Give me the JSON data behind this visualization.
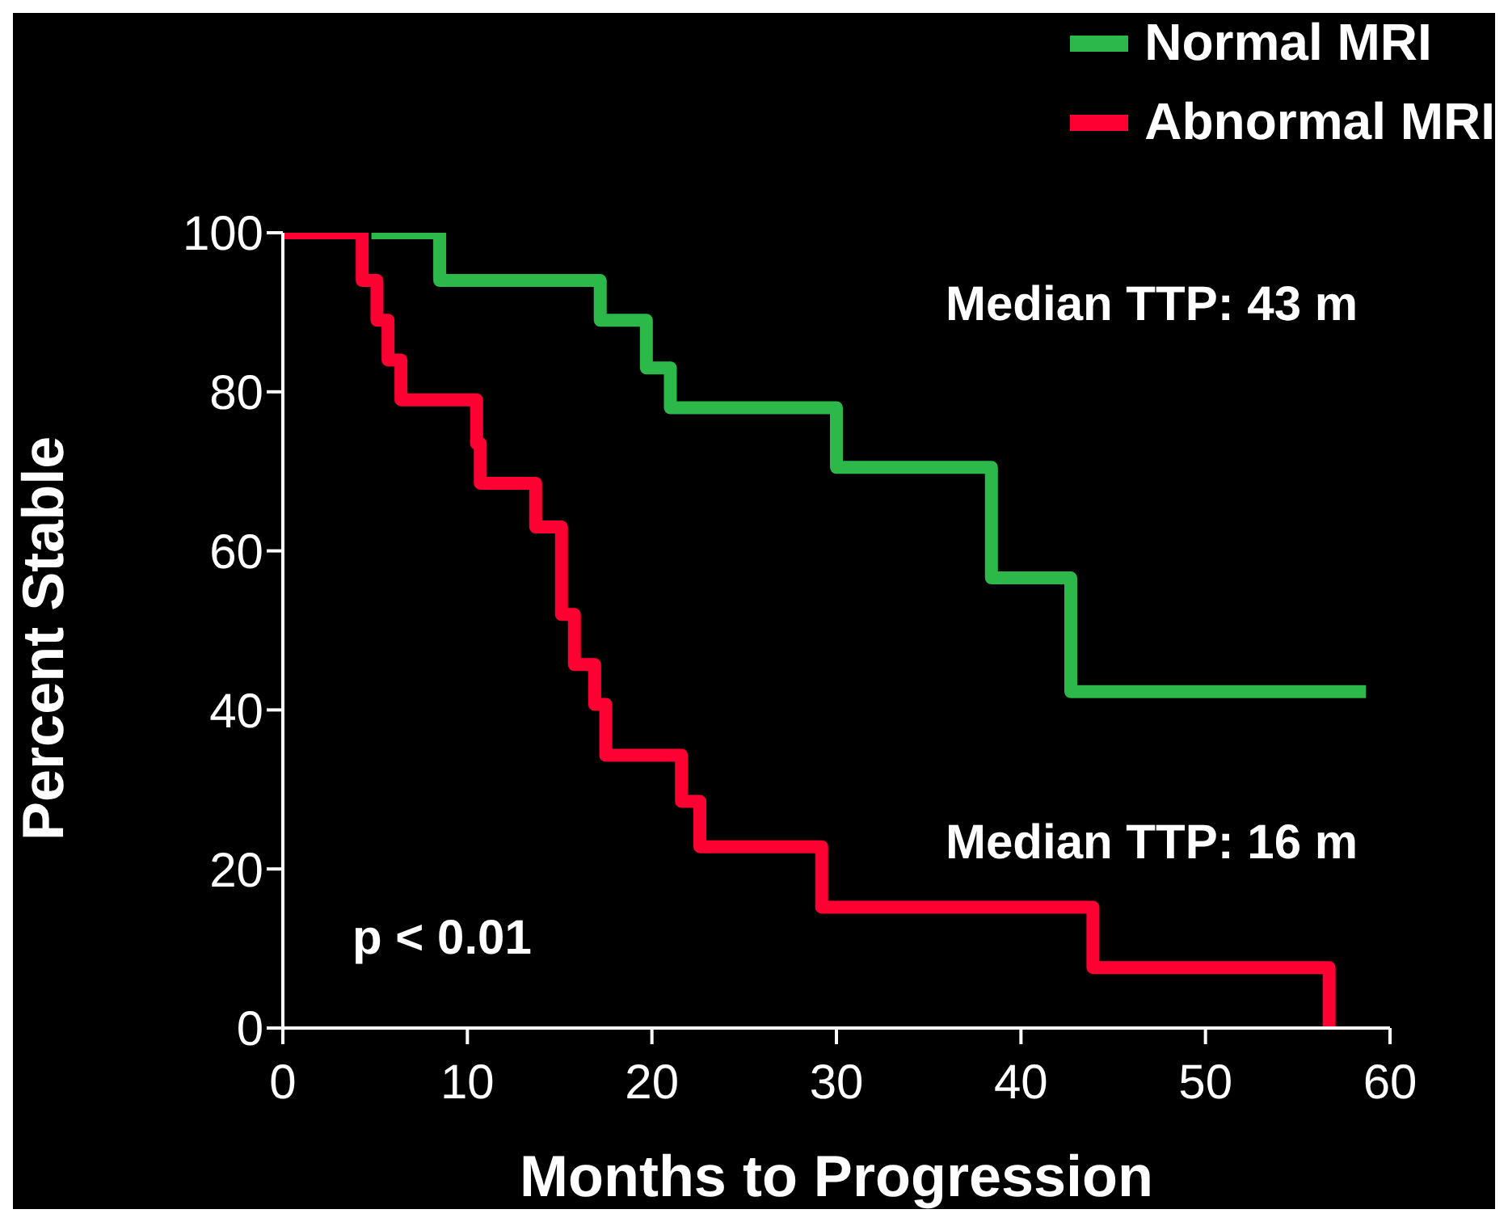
{
  "chart_data": {
    "type": "step",
    "xlabel": "Months to Progression",
    "ylabel": "Percent Stable",
    "xlim": [
      0,
      60
    ],
    "xticks": [
      0,
      10,
      20,
      30,
      40,
      50,
      60
    ],
    "ylim": [
      0,
      100
    ],
    "yticks": [
      0,
      20,
      40,
      60,
      80,
      100
    ],
    "grid": false,
    "legend": "top right",
    "marker": "none",
    "line_style": "solid",
    "annotations": [
      "Median TTP: 43 m",
      "Median TTP: 16 m",
      "p < 0.01"
    ],
    "series": [
      {
        "name": "Normal MRI",
        "color": "#2db84a",
        "x": [
          4.8,
          8.5,
          17.2,
          19.7,
          21,
          30,
          38.4,
          42.7,
          58.7
        ],
        "values": [
          100,
          94,
          89,
          83,
          78,
          70.5,
          56.6,
          42.3,
          42.3
        ]
      },
      {
        "name": "Abnormal MRI",
        "color": "#ff0033",
        "x": [
          0,
          4.3,
          5.1,
          5.7,
          6.4,
          10.5,
          10.7,
          13.7,
          15.1,
          15.8,
          16.9,
          17.5,
          21.6,
          22.6,
          29.2,
          43.9,
          56.7
        ],
        "values": [
          100,
          94,
          89,
          84,
          79,
          73.5,
          68.5,
          63,
          52,
          45.7,
          40.7,
          34.3,
          28.5,
          22.8,
          15.2,
          7.6,
          0
        ]
      }
    ]
  }
}
